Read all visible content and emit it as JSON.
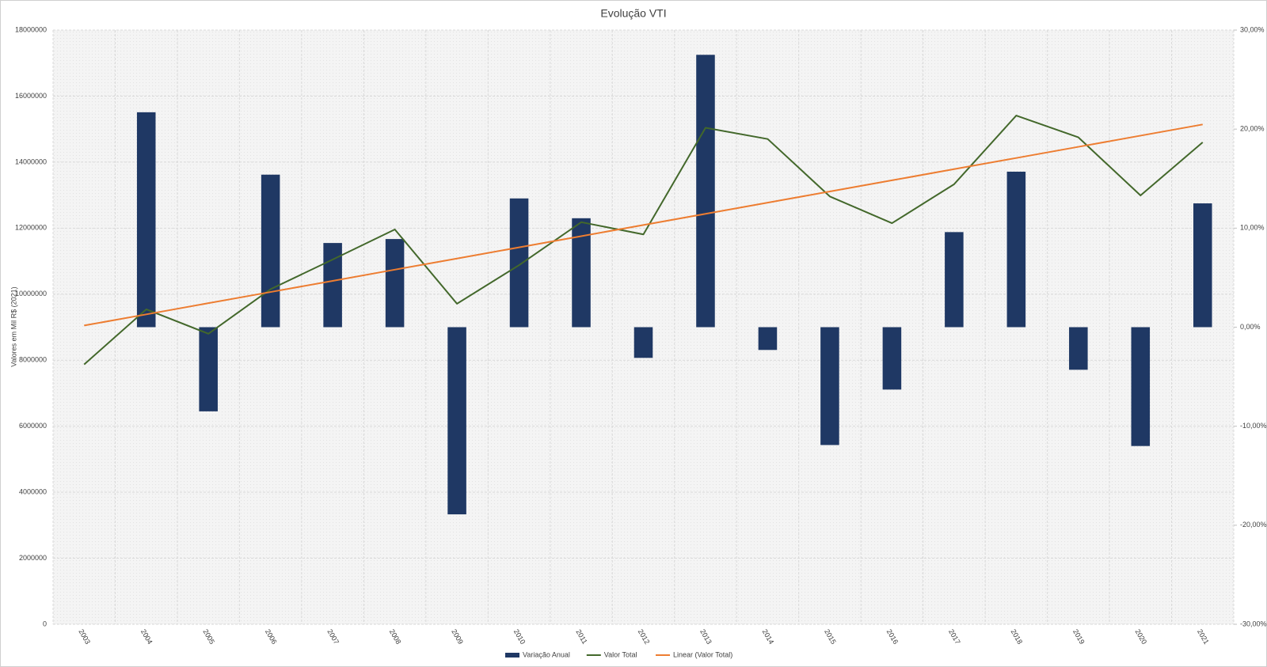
{
  "chart_data": {
    "type": "bar-line",
    "title": "Evolução VTI",
    "y_label": "Valores em Mil R$ (2021)",
    "categories": [
      "2003",
      "2004",
      "2005",
      "2006",
      "2007",
      "2008",
      "2009",
      "2010",
      "2011",
      "2012",
      "2013",
      "2014",
      "2015",
      "2016",
      "2017",
      "2018",
      "2019",
      "2020",
      "2021"
    ],
    "ylim": [
      0,
      18000000
    ],
    "yticks": [
      0,
      2000000,
      4000000,
      6000000,
      8000000,
      10000000,
      12000000,
      14000000,
      16000000,
      18000000
    ],
    "y2lim": [
      -30,
      30
    ],
    "y2ticks": [
      {
        "value": -30,
        "label": "-30,00%"
      },
      {
        "value": -20,
        "label": "-20,00%"
      },
      {
        "value": -10,
        "label": "-10,00%"
      },
      {
        "value": 0,
        "label": "0,00%"
      },
      {
        "value": 10,
        "label": "10,00%"
      },
      {
        "value": 20,
        "label": "20,00%"
      },
      {
        "value": 30,
        "label": "30,00%"
      }
    ],
    "grid": true,
    "legend": "bottom",
    "series": [
      {
        "name": "Variação Anual",
        "type": "bar",
        "axis": "y2",
        "color": "#1f3864",
        "values": [
          null,
          21.7,
          -8.5,
          15.4,
          8.5,
          8.9,
          -18.9,
          13.0,
          11.0,
          -3.1,
          27.5,
          -2.3,
          -11.9,
          -6.3,
          9.6,
          15.7,
          -4.3,
          -12.0,
          12.5
        ]
      },
      {
        "name": "Valor Total",
        "type": "line",
        "color": "#43682b",
        "values": [
          7870000,
          9540000,
          8800000,
          10150000,
          11050000,
          11960000,
          9710000,
          10880000,
          12180000,
          11810000,
          15040000,
          14700000,
          12960000,
          12150000,
          13330000,
          15410000,
          14750000,
          12990000,
          14600000
        ]
      },
      {
        "name": "Linear (Valor Total)",
        "type": "line",
        "color": "#ed7d31",
        "values": [
          9050000,
          9388000,
          9727000,
          10065000,
          10403000,
          10742000,
          11080000,
          11418000,
          11757000,
          12095000,
          12433000,
          12772000,
          13110000,
          13448000,
          13787000,
          14125000,
          14463000,
          14802000,
          15140000
        ]
      }
    ]
  }
}
